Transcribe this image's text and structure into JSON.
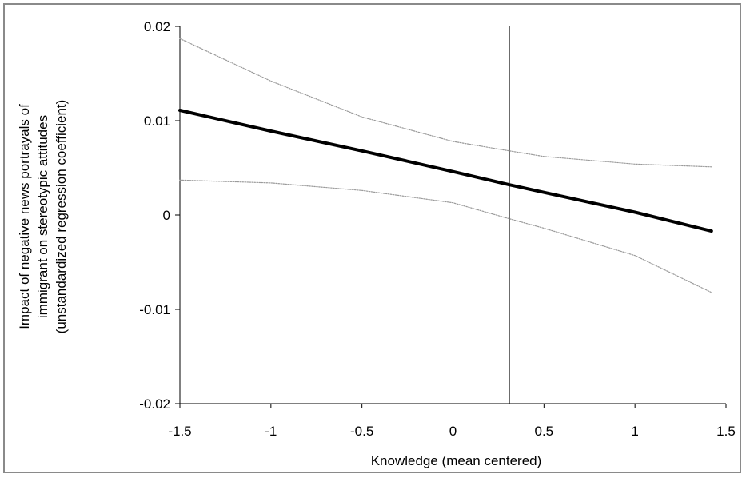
{
  "chart_data": {
    "type": "line",
    "title": "",
    "xlabel": "Knowledge (mean centered)",
    "ylabel_lines": [
      "Impact of negative news portrayals of",
      "immigrant on stereotypic attitudes",
      "(unstandardized regression coefficient)"
    ],
    "xlim": [
      -1.5,
      1.5
    ],
    "ylim": [
      -0.02,
      0.02
    ],
    "x_ticks": [
      -1.5,
      -1,
      -0.5,
      0,
      0.5,
      1,
      1.5
    ],
    "x_tick_labels": [
      "-1.5",
      "-1",
      "-0.5",
      "0",
      "0.5",
      "1",
      "1.5"
    ],
    "y_ticks": [
      -0.02,
      -0.01,
      0,
      0.01,
      0.02
    ],
    "y_tick_labels": [
      "-0.02",
      "-0.01",
      "0",
      "0.01",
      "0.02"
    ],
    "grid": false,
    "legend": "none",
    "reference_line_x": 0.31,
    "series": [
      {
        "role": "estimate",
        "color": "#000000",
        "x": [
          -1.5,
          -1,
          -0.5,
          0,
          0.31,
          0.5,
          1,
          1.42
        ],
        "y": [
          0.0111,
          0.0089,
          0.0068,
          0.0046,
          0.0032,
          0.0024,
          0.0003,
          -0.0017
        ]
      },
      {
        "role": "upper bound",
        "color": "#9a9a9a",
        "x": [
          -1.5,
          -1,
          -0.5,
          0,
          0.31,
          0.5,
          1,
          1.42
        ],
        "y": [
          0.0187,
          0.0142,
          0.0104,
          0.0078,
          0.0068,
          0.0062,
          0.0054,
          0.0051
        ]
      },
      {
        "role": "lower bound",
        "color": "#9a9a9a",
        "x": [
          -1.5,
          -1,
          -0.5,
          0,
          0.31,
          0.5,
          1,
          1.42
        ],
        "y": [
          0.0037,
          0.0034,
          0.0026,
          0.0013,
          -0.0004,
          -0.0014,
          -0.0043,
          -0.0082
        ]
      }
    ]
  }
}
